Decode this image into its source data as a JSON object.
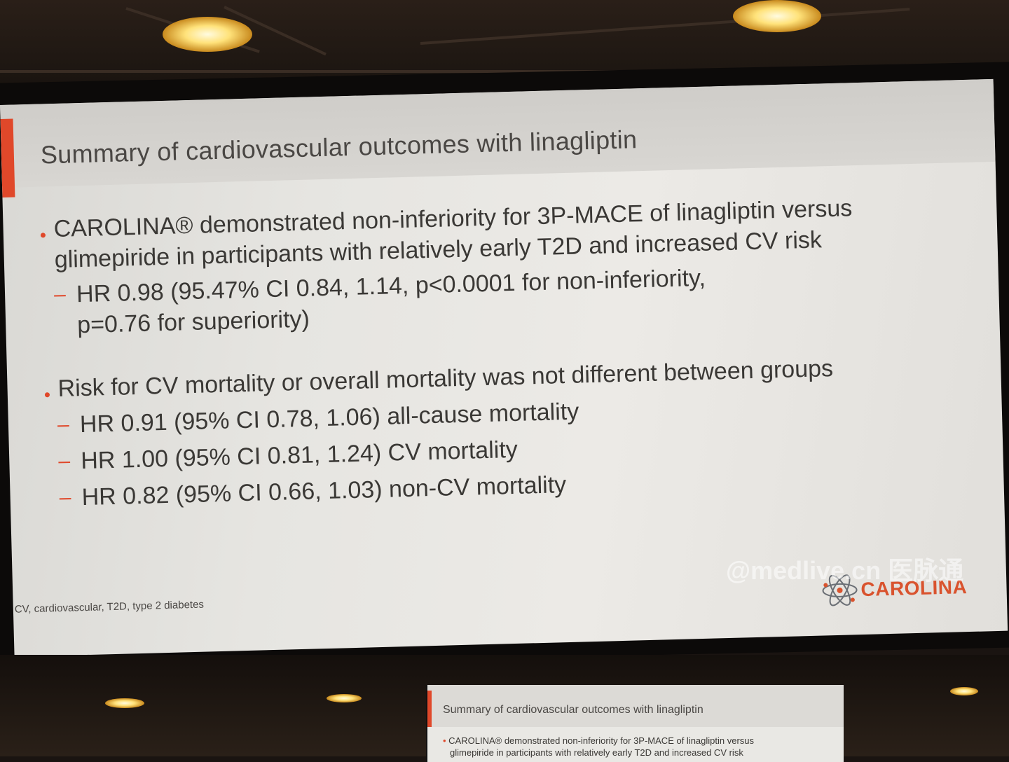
{
  "slide": {
    "title": "Summary of cardiovascular outcomes with linagliptin",
    "bullets": [
      {
        "lines": [
          "CAROLINA® demonstrated non-inferiority for 3P-MACE of linagliptin versus",
          "glimepiride in participants with relatively early T2D and increased CV risk"
        ],
        "sub": [
          "HR 0.98 (95.47% CI 0.84, 1.14, p<0.0001 for non-inferiority,",
          "p=0.76 for superiority)"
        ]
      },
      {
        "lines": [
          "Risk for CV mortality or overall mortality was not different between groups"
        ],
        "sub": [
          "HR 0.91 (95% CI 0.78, 1.06) all-cause mortality",
          "HR 1.00 (95% CI 0.81, 1.24) CV mortality",
          "HR 0.82 (95% CI 0.66, 1.03) non-CV mortality"
        ]
      }
    ],
    "footnote": "CV, cardiovascular, T2D, type 2 diabetes",
    "logo_text": "CAROLINA",
    "logo_icon": "atom-icon",
    "accent_color": "#e0482a"
  },
  "watermark": "@medlive.cn 医脉通",
  "secondary_screen": {
    "title": "Summary of cardiovascular outcomes with linagliptin",
    "lines": [
      "CAROLINA® demonstrated non-inferiority for 3P-MACE of linagliptin versus",
      "glimepiride in participants with relatively early T2D and increased CV risk"
    ]
  }
}
